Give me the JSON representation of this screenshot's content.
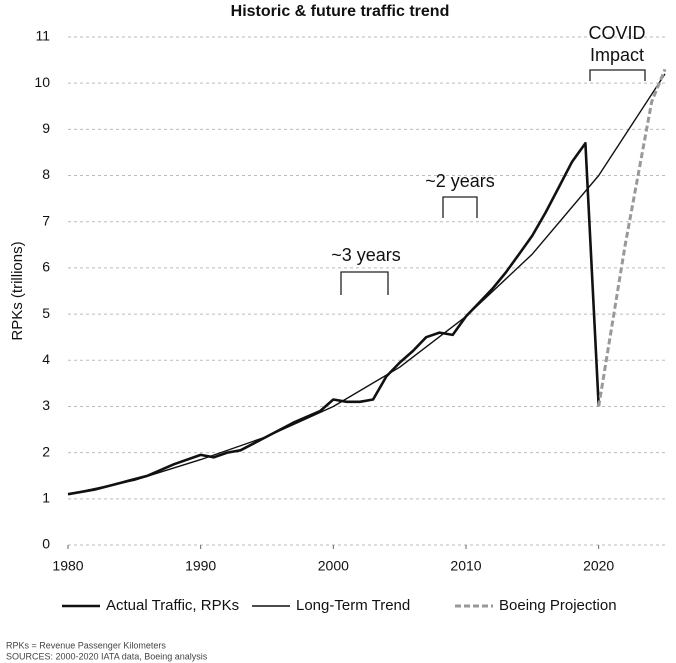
{
  "chart_data": {
    "type": "line",
    "title": "Historic & future traffic trend",
    "y_label": "RPKs (trillions)",
    "xlim": [
      1980,
      2025
    ],
    "xticks": [
      1980,
      1990,
      2000,
      2010,
      2020
    ],
    "ylim": [
      0,
      11
    ],
    "yticks": [
      0,
      1,
      2,
      3,
      4,
      5,
      6,
      7,
      8,
      9,
      10,
      11
    ],
    "grid": true,
    "legend": "bottom",
    "series": [
      {
        "name": "Actual Traffic, RPKs",
        "color": "#111111",
        "dashed": false,
        "x": [
          1980,
          1982,
          1984,
          1986,
          1988,
          1990,
          1991,
          1992,
          1993,
          1995,
          1997,
          1999,
          2000,
          2001,
          2002,
          2003,
          2004,
          2005,
          2006,
          2007,
          2008,
          2009,
          2010,
          2011,
          2012,
          2013,
          2014,
          2015,
          2016,
          2017,
          2018,
          2019,
          2020
        ],
        "values": [
          1.1,
          1.2,
          1.35,
          1.5,
          1.75,
          1.95,
          1.9,
          2.0,
          2.05,
          2.35,
          2.65,
          2.9,
          3.15,
          3.1,
          3.1,
          3.15,
          3.65,
          3.95,
          4.2,
          4.5,
          4.6,
          4.55,
          4.95,
          5.25,
          5.55,
          5.9,
          6.3,
          6.7,
          7.2,
          7.75,
          8.3,
          8.7,
          3.0
        ]
      },
      {
        "name": "Long-Term Trend",
        "color": "#111111",
        "dashed": false,
        "x": [
          1980,
          1985,
          1990,
          1995,
          2000,
          2005,
          2010,
          2015,
          2020,
          2025
        ],
        "values": [
          1.1,
          1.4,
          1.85,
          2.35,
          3.0,
          3.85,
          4.95,
          6.3,
          8.0,
          10.2
        ]
      },
      {
        "name": "Boeing Projection",
        "color": "#999999",
        "dashed": true,
        "x": [
          2020,
          2022,
          2024,
          2025
        ],
        "values": [
          3.0,
          6.5,
          9.6,
          10.3
        ]
      }
    ],
    "annotations": [
      "COVID",
      "Impact",
      "~2 years",
      "~3 years"
    ],
    "footnotes": [
      "RPKs = Revenue Passenger Kilometers",
      "SOURCES: 2000-2020 IATA data, Boeing analysis"
    ]
  }
}
